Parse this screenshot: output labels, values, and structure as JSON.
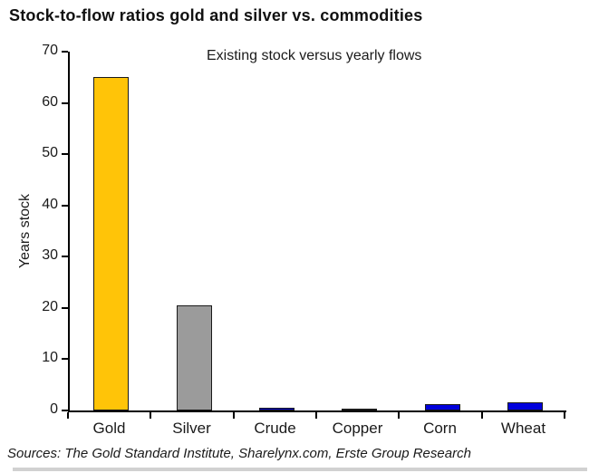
{
  "chart_data": {
    "type": "bar",
    "title": "Stock-to-flow ratios gold and silver vs. commodities",
    "subtitle": "Existing stock versus yearly flows",
    "ylabel": "Years stock",
    "xlabel": "",
    "categories": [
      "Gold",
      "Silver",
      "Crude",
      "Copper",
      "Corn",
      "Wheat"
    ],
    "values": [
      65,
      20.5,
      0.6,
      0.4,
      1.3,
      1.6
    ],
    "bar_colors": [
      "#FFC408",
      "#9B9B9B",
      "#0000C8",
      "#0000C8",
      "#0000DC",
      "#0000DC"
    ],
    "ylim": [
      0,
      70
    ],
    "yticks": [
      0,
      10,
      20,
      30,
      40,
      50,
      60,
      70
    ],
    "grid": false,
    "legend": false,
    "legend_position": "none",
    "source_note": "Sources: The Gold Standard Institute, Sharelynx.com, Erste Group Research"
  },
  "colors": {
    "axis": "#000000",
    "bar_border": "#1A1A1A",
    "background": "#FFFFFF",
    "scan_strip": "#C6C6C6"
  }
}
